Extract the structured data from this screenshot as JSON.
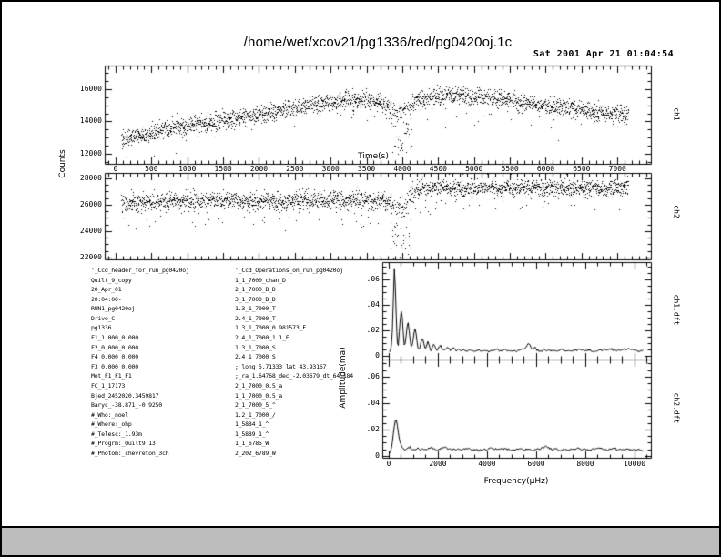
{
  "title": "/home/wet/xcov21/pg1336/red/pg0420oj.1c",
  "timestamp": "Sat 2001 Apr 21 01:04:54",
  "colors": {
    "page_bg": "#ffffff",
    "chrome_bg": "#bdbdbd",
    "ink": "#000000"
  },
  "header_left": [
    "'_Ccd_header_for_run_pg0420oj",
    "Quilt_9_copy",
    "20_Apr_01",
    "20:04:00-",
    "RUN1_pg0420oj",
    "Drive_C",
    "pg1336",
    "F1_1.000_0.000",
    "F2_0.000_0.000",
    "F4_0.000_0.000",
    "F3_0.000_0.000",
    "Mot_F1_F1_F1",
    "FC_1_17173",
    "Bjed_2452020.3459817",
    "Baryc_-38.871_-0.9250",
    "#_Who:_noel",
    "#_Where:_ohp",
    "#_Telesc:_1.93m",
    "#_Progrm:_Quilt9.13",
    "#_Photom:_chevreton_3ch"
  ],
  "header_right": [
    "'_Ccd_Operations_on_run_pg0420oj",
    "1_1_7000_chan_D",
    "2_1_7000_B_D",
    "3_1_7000_B_D",
    "1.3_1_7000_T",
    "2.4_1_7000_T",
    "1.3_1_7000_0.981573_F",
    "2.4_1_7000_1.1_F",
    "1.3_1_7000_S",
    "2.4_1_7000_S",
    ";_long_5.71333_lat_43.93167_",
    ";_ra_1.64768_dec_-2.03679_dt_64.184",
    "2_1_7000_0.5_a",
    "1_1_7000_0.5_a",
    "2_1_7000_5_^",
    "1.2_1_7000_/",
    "1_5884_1_^",
    "1_5889_1_^",
    "1_1_6785_W",
    "2_202_6789_W"
  ],
  "chart_data": [
    {
      "type": "scatter",
      "name": "ch1",
      "right_label": "ch1",
      "xlabel": "Time(s)",
      "ylabel": "Counts",
      "xlim": [
        -152,
        7467
      ],
      "ylim": [
        11380,
        17460
      ],
      "xticks_minor": 100,
      "xticks_major": 500,
      "yticks_minor": 500,
      "yticks_major": 2000,
      "xtick_labels": [
        0,
        500,
        1000,
        1500,
        2000,
        2500,
        3000,
        3500,
        4000,
        4500,
        5000,
        5500,
        6000,
        6500,
        7000
      ],
      "ytick_labels": [
        12000,
        14000,
        16000
      ],
      "t_start": 80,
      "t_end": 7150,
      "n_points": 2400,
      "trend": [
        [
          0,
          12900
        ],
        [
          400,
          13250
        ],
        [
          800,
          13600
        ],
        [
          1200,
          13900
        ],
        [
          1600,
          14150
        ],
        [
          2000,
          14450
        ],
        [
          2400,
          14800
        ],
        [
          2800,
          15100
        ],
        [
          3200,
          15350
        ],
        [
          3500,
          15400
        ],
        [
          3700,
          15150
        ],
        [
          3850,
          14850
        ],
        [
          3950,
          14650
        ],
        [
          4050,
          14800
        ],
        [
          4200,
          15250
        ],
        [
          4500,
          15600
        ],
        [
          4800,
          15680
        ],
        [
          5100,
          15550
        ],
        [
          5400,
          15350
        ],
        [
          5700,
          15150
        ],
        [
          6000,
          15000
        ],
        [
          6300,
          14850
        ],
        [
          6600,
          14650
        ],
        [
          6900,
          14500
        ],
        [
          7200,
          14420
        ]
      ],
      "scatter_sigma": 270,
      "low_tail_prob": 0.02,
      "low_tail_depth": 1500,
      "dropout_window": [
        3830,
        4130
      ],
      "dropout_prob": 0.5,
      "dropout_depth": 2600,
      "seed": 20010421
    },
    {
      "type": "scatter",
      "name": "ch2",
      "right_label": "ch2",
      "xlim": [
        -152,
        7467
      ],
      "ylim": [
        21860,
        28410
      ],
      "xticks_minor": 100,
      "xticks_major": 500,
      "yticks_minor": 500,
      "yticks_major": 2000,
      "xtick_labels": [],
      "ytick_labels": [
        22000,
        24000,
        26000,
        28000
      ],
      "t_start": 80,
      "t_end": 7150,
      "n_points": 2400,
      "trend": [
        [
          0,
          26150
        ],
        [
          500,
          26250
        ],
        [
          1000,
          26300
        ],
        [
          1500,
          26350
        ],
        [
          2000,
          26300
        ],
        [
          2500,
          26350
        ],
        [
          3000,
          26400
        ],
        [
          3500,
          26350
        ],
        [
          3800,
          26300
        ],
        [
          3900,
          26000
        ],
        [
          4000,
          25950
        ],
        [
          4100,
          26800
        ],
        [
          4200,
          27250
        ],
        [
          5000,
          27300
        ],
        [
          5500,
          27250
        ],
        [
          6000,
          27300
        ],
        [
          6500,
          27250
        ],
        [
          7200,
          27300
        ]
      ],
      "scatter_sigma": 330,
      "low_tail_prob": 0.04,
      "low_tail_depth": 1900,
      "dropout_window": [
        3830,
        4130
      ],
      "dropout_prob": 0.5,
      "dropout_depth": 4300,
      "seed": 10436
    },
    {
      "type": "line",
      "name": "ch1.dft",
      "right_label": "ch1.dft",
      "ylabel": "Amplitude(ma)",
      "xlim": [
        -259,
        10667
      ],
      "ylim": [
        -0.00286,
        0.0736
      ],
      "xticks_minor": 500,
      "xticks_major": 2000,
      "yticks_minor": 0.005,
      "yticks_major": 0.02,
      "xtick_labels": [],
      "ytick_labels": [
        0,
        0.02,
        0.04,
        0.06
      ],
      "points": [
        [
          30,
          0.003
        ],
        [
          90,
          0.005
        ],
        [
          140,
          0.014
        ],
        [
          180,
          0.038
        ],
        [
          215,
          0.062
        ],
        [
          235,
          0.07
        ],
        [
          260,
          0.06
        ],
        [
          295,
          0.038
        ],
        [
          330,
          0.016
        ],
        [
          365,
          0.006
        ],
        [
          400,
          0.009
        ],
        [
          445,
          0.024
        ],
        [
          495,
          0.034
        ],
        [
          530,
          0.036
        ],
        [
          570,
          0.026
        ],
        [
          610,
          0.012
        ],
        [
          645,
          0.006
        ],
        [
          690,
          0.013
        ],
        [
          740,
          0.022
        ],
        [
          790,
          0.026
        ],
        [
          840,
          0.019
        ],
        [
          885,
          0.009
        ],
        [
          930,
          0.005
        ],
        [
          985,
          0.012
        ],
        [
          1040,
          0.02
        ],
        [
          1090,
          0.021
        ],
        [
          1140,
          0.013
        ],
        [
          1190,
          0.006
        ],
        [
          1250,
          0.005
        ],
        [
          1310,
          0.011
        ],
        [
          1365,
          0.015
        ],
        [
          1420,
          0.011
        ],
        [
          1475,
          0.005
        ],
        [
          1535,
          0.008
        ],
        [
          1595,
          0.012
        ],
        [
          1655,
          0.008
        ],
        [
          1715,
          0.004
        ],
        [
          1775,
          0.007
        ],
        [
          1840,
          0.0095
        ],
        [
          1905,
          0.006
        ],
        [
          1970,
          0.004
        ],
        [
          2040,
          0.007
        ],
        [
          2110,
          0.008
        ],
        [
          2180,
          0.005
        ],
        [
          2250,
          0.0045
        ],
        [
          2330,
          0.006
        ],
        [
          2410,
          0.007
        ],
        [
          2490,
          0.0045
        ],
        [
          2570,
          0.005
        ],
        [
          2660,
          0.0065
        ],
        [
          2750,
          0.004
        ],
        [
          2850,
          0.005
        ],
        [
          2950,
          0.004
        ],
        [
          3060,
          0.005
        ],
        [
          3170,
          0.0035
        ],
        [
          3290,
          0.0045
        ],
        [
          3410,
          0.004
        ],
        [
          3540,
          0.0035
        ],
        [
          3670,
          0.005
        ],
        [
          3800,
          0.004
        ],
        [
          3940,
          0.0045
        ],
        [
          4080,
          0.0035
        ],
        [
          4230,
          0.004
        ],
        [
          4390,
          0.005
        ],
        [
          4550,
          0.004
        ],
        [
          4700,
          0.0055
        ],
        [
          4850,
          0.004
        ],
        [
          5000,
          0.0045
        ],
        [
          5150,
          0.0035
        ],
        [
          5300,
          0.004
        ],
        [
          5450,
          0.0055
        ],
        [
          5580,
          0.007
        ],
        [
          5680,
          0.0095
        ],
        [
          5780,
          0.0075
        ],
        [
          5860,
          0.005
        ],
        [
          5950,
          0.007
        ],
        [
          6040,
          0.0045
        ],
        [
          6180,
          0.0035
        ],
        [
          6330,
          0.0045
        ],
        [
          6490,
          0.004
        ],
        [
          6650,
          0.0045
        ],
        [
          6820,
          0.0035
        ],
        [
          7000,
          0.0045
        ],
        [
          7180,
          0.004
        ],
        [
          7370,
          0.0035
        ],
        [
          7560,
          0.0045
        ],
        [
          7760,
          0.005
        ],
        [
          7960,
          0.004
        ],
        [
          8170,
          0.0045
        ],
        [
          8380,
          0.0035
        ],
        [
          8600,
          0.0045
        ],
        [
          8820,
          0.005
        ],
        [
          9040,
          0.0055
        ],
        [
          9260,
          0.004
        ],
        [
          9480,
          0.0045
        ],
        [
          9700,
          0.0055
        ],
        [
          9920,
          0.0045
        ],
        [
          10140,
          0.004
        ],
        [
          10350,
          0.0045
        ]
      ],
      "seed": 77
    },
    {
      "type": "line",
      "name": "ch2.dft",
      "right_label": "ch2.dft",
      "xlabel": "Frequency(μHz)",
      "xlim": [
        -259,
        10667
      ],
      "ylim": [
        -0.00138,
        0.0731
      ],
      "xticks_minor": 500,
      "xticks_major": 2000,
      "yticks_minor": 0.005,
      "yticks_major": 0.02,
      "xtick_labels": [
        0,
        2000,
        4000,
        6000,
        8000,
        10000
      ],
      "ytick_labels": [
        0,
        0.02,
        0.04,
        0.06
      ],
      "points": [
        [
          30,
          0.002
        ],
        [
          90,
          0.004
        ],
        [
          140,
          0.009
        ],
        [
          190,
          0.017
        ],
        [
          240,
          0.024
        ],
        [
          285,
          0.0285
        ],
        [
          330,
          0.026
        ],
        [
          380,
          0.019
        ],
        [
          430,
          0.013
        ],
        [
          490,
          0.009
        ],
        [
          550,
          0.0065
        ],
        [
          620,
          0.005
        ],
        [
          700,
          0.0045
        ],
        [
          780,
          0.006
        ],
        [
          860,
          0.007
        ],
        [
          940,
          0.0055
        ],
        [
          1030,
          0.0045
        ],
        [
          1120,
          0.0055
        ],
        [
          1210,
          0.006
        ],
        [
          1300,
          0.0045
        ],
        [
          1400,
          0.0055
        ],
        [
          1500,
          0.0045
        ],
        [
          1610,
          0.005
        ],
        [
          1720,
          0.0065
        ],
        [
          1830,
          0.0055
        ],
        [
          1950,
          0.0045
        ],
        [
          2070,
          0.005
        ],
        [
          2190,
          0.006
        ],
        [
          2310,
          0.0065
        ],
        [
          2430,
          0.005
        ],
        [
          2560,
          0.0055
        ],
        [
          2690,
          0.0045
        ],
        [
          2830,
          0.005
        ],
        [
          2970,
          0.0045
        ],
        [
          3110,
          0.0055
        ],
        [
          3250,
          0.006
        ],
        [
          3390,
          0.0045
        ],
        [
          3540,
          0.005
        ],
        [
          3690,
          0.004
        ],
        [
          3840,
          0.0045
        ],
        [
          4000,
          0.005
        ],
        [
          4160,
          0.006
        ],
        [
          4320,
          0.0055
        ],
        [
          4480,
          0.0045
        ],
        [
          4650,
          0.0055
        ],
        [
          4820,
          0.005
        ],
        [
          4990,
          0.0045
        ],
        [
          5160,
          0.005
        ],
        [
          5330,
          0.0055
        ],
        [
          5500,
          0.0045
        ],
        [
          5670,
          0.005
        ],
        [
          5840,
          0.004
        ],
        [
          6010,
          0.0045
        ],
        [
          6180,
          0.0055
        ],
        [
          6310,
          0.0065
        ],
        [
          6420,
          0.0075
        ],
        [
          6530,
          0.006
        ],
        [
          6650,
          0.0045
        ],
        [
          6820,
          0.005
        ],
        [
          6990,
          0.0045
        ],
        [
          7160,
          0.005
        ],
        [
          7330,
          0.0045
        ],
        [
          7500,
          0.0055
        ],
        [
          7670,
          0.006
        ],
        [
          7840,
          0.0045
        ],
        [
          8010,
          0.005
        ],
        [
          8180,
          0.0045
        ],
        [
          8350,
          0.0055
        ],
        [
          8520,
          0.006
        ],
        [
          8690,
          0.005
        ],
        [
          8860,
          0.0045
        ],
        [
          9030,
          0.005
        ],
        [
          9200,
          0.0055
        ],
        [
          9370,
          0.0045
        ],
        [
          9540,
          0.005
        ],
        [
          9710,
          0.0055
        ],
        [
          9880,
          0.0045
        ],
        [
          10050,
          0.005
        ],
        [
          10220,
          0.0045
        ],
        [
          10380,
          0.004
        ]
      ],
      "seed": 99
    }
  ]
}
